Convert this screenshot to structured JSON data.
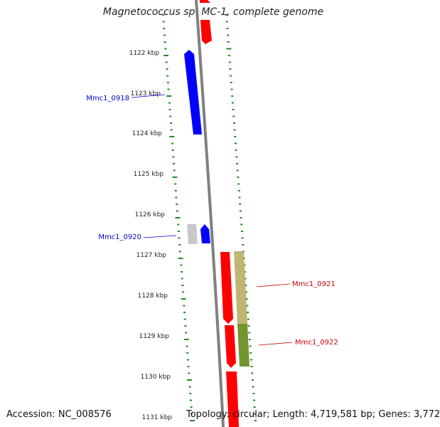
{
  "title": "Magnetococcus sp. MC-1, complete genome",
  "footer": {
    "accession_label": "Accession:",
    "accession": "NC_008576",
    "topology_label": "Topology:",
    "topology": "circular",
    "length_label": "Length:",
    "length": "4,719,581 bp",
    "genes_label": "Genes:",
    "genes": "3,772"
  },
  "ticks": [
    "1122 kbp",
    "1123 kbp",
    "1124 kbp",
    "1125 kbp",
    "1126 kbp",
    "1127 kbp",
    "1128 kbp",
    "1129 kbp",
    "1130 kbp",
    "1131 kbp"
  ],
  "colors": {
    "forward_feature": "#0000ff",
    "reverse_feature": "#ff0000",
    "backbone": "#808080",
    "tick_marks": "#228b22",
    "gene_label_forward": "#0000cc",
    "gene_label_reverse": "#cc0000",
    "gc_skew_positive": "#b5a85a",
    "gc_skew_negative": "#6b8e23",
    "unknown_feature": "#c8c8c8"
  },
  "gene_labels": [
    {
      "name": "Mmc1_0918",
      "strand": "forward"
    },
    {
      "name": "Mmc1_0920",
      "strand": "forward"
    },
    {
      "name": "Mmc1_0921",
      "strand": "reverse"
    },
    {
      "name": "Mmc1_0922",
      "strand": "reverse"
    }
  ]
}
